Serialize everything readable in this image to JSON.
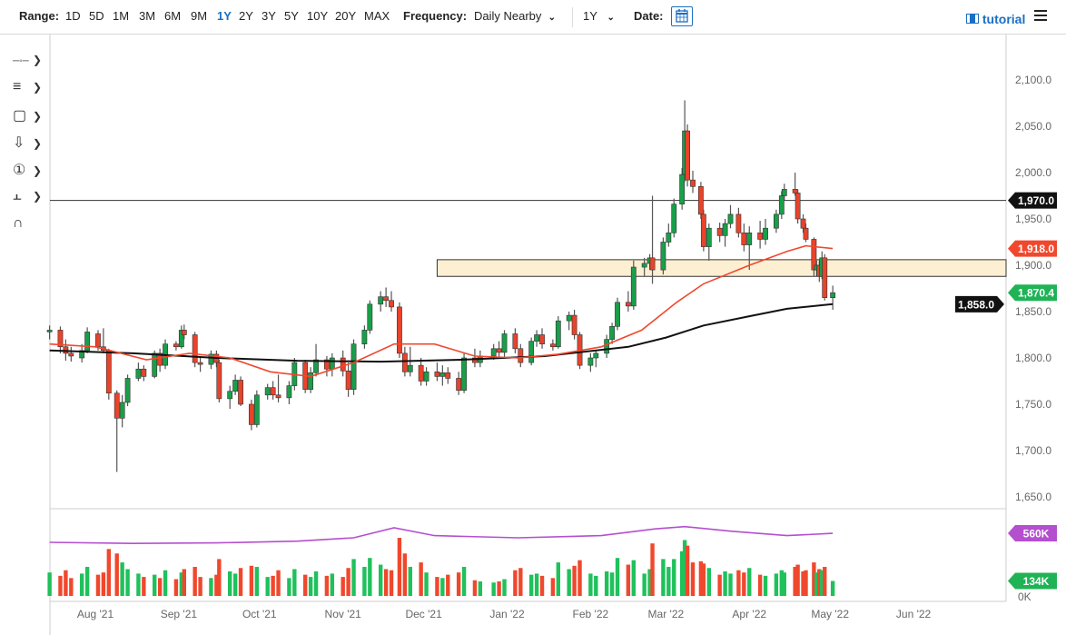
{
  "toolbar": {
    "range_label": "Range:",
    "ranges": [
      "1D",
      "5D",
      "1M",
      "3M",
      "6M",
      "9M",
      "1Y",
      "2Y",
      "3Y",
      "5Y",
      "10Y",
      "20Y",
      "MAX"
    ],
    "active_range": "1Y",
    "frequency_label": "Frequency:",
    "frequency_value": "Daily Nearby",
    "period_value": "1Y",
    "date_label": "Date:",
    "tutorial_label": "tutorial",
    "icons": [
      "calendar-icon",
      "film-icon",
      "hamburger-menu-icon"
    ]
  },
  "left_tools": [
    "crosshair-line-icon",
    "fibonacci-icon",
    "rectangle-icon",
    "arrow-down-icon",
    "numbered-marker-icon",
    "measure-icon",
    "magnet-icon"
  ],
  "colors": {
    "up": "#1a9e4a",
    "down": "#e8432b",
    "ma_short": "#f0482d",
    "ma_long": "#111111",
    "open_interest": "#b44fcf",
    "zone_fill": "#fdefd2",
    "volume_up": "#1fc15b",
    "volume_down": "#f0482d"
  },
  "chart_data": {
    "type": "candlestick",
    "price_axis": {
      "ylim": [
        1640,
        2115
      ],
      "ticks": [
        "2,100.0",
        "2,050.0",
        "2,000.0",
        "1,950.0",
        "1,900.0",
        "1,850.0",
        "1,800.0",
        "1,750.0",
        "1,700.0",
        "1,650.0"
      ],
      "tick_values": [
        2100,
        2050,
        2000,
        1950,
        1900,
        1850,
        1800,
        1750,
        1700,
        1650
      ]
    },
    "x_axis": {
      "ticks": [
        "Aug '21",
        "Sep '21",
        "Oct '21",
        "Nov '21",
        "Dec '21",
        "Jan '22",
        "Feb '22",
        "Mar '22",
        "Apr '22",
        "May '22",
        "Jun '22"
      ],
      "tick_dates": [
        "2021-08-01",
        "2021-09-01",
        "2021-10-01",
        "2021-11-01",
        "2021-12-01",
        "2022-01-01",
        "2022-02-01",
        "2022-03-01",
        "2022-04-01",
        "2022-05-01",
        "2022-06-01"
      ]
    },
    "price_labels": [
      {
        "text": "1,970.0",
        "value": 1970,
        "color": "#111111"
      },
      {
        "text": "1,918.0",
        "value": 1918,
        "color": "#f0482d"
      },
      {
        "text": "1,858.0",
        "value": 1858,
        "color": "#111111"
      },
      {
        "text": "1,870.4",
        "value": 1870.4,
        "color": "#1fb356"
      }
    ],
    "horizontal_line": 1970,
    "zone": {
      "from": 1888,
      "to": 1906,
      "start": "2021-12-06"
    },
    "volume_axis": {
      "ticks": [
        "0K"
      ],
      "labels": [
        {
          "text": "560K",
          "value": 560,
          "color": "#b44fcf"
        },
        {
          "text": "134K",
          "value": 134,
          "color": "#1fb356"
        }
      ]
    },
    "candles_columns": [
      "date",
      "open",
      "high",
      "low",
      "close",
      "volume_k"
    ],
    "candles": [
      [
        "2021-07-15",
        1828,
        1835,
        1820,
        1830,
        210
      ],
      [
        "2021-07-19",
        1830,
        1834,
        1805,
        1812,
        180
      ],
      [
        "2021-07-21",
        1812,
        1820,
        1797,
        1805,
        230
      ],
      [
        "2021-07-23",
        1805,
        1812,
        1796,
        1802,
        160
      ],
      [
        "2021-07-27",
        1800,
        1815,
        1795,
        1808,
        200
      ],
      [
        "2021-07-29",
        1808,
        1833,
        1805,
        1828,
        260
      ],
      [
        "2021-08-02",
        1826,
        1830,
        1808,
        1812,
        190
      ],
      [
        "2021-08-04",
        1812,
        1832,
        1805,
        1808,
        210
      ],
      [
        "2021-08-06",
        1808,
        1810,
        1755,
        1762,
        420
      ],
      [
        "2021-08-09",
        1762,
        1765,
        1677,
        1735,
        380
      ],
      [
        "2021-08-11",
        1735,
        1760,
        1725,
        1752,
        300
      ],
      [
        "2021-08-13",
        1752,
        1782,
        1748,
        1778,
        240
      ],
      [
        "2021-08-17",
        1778,
        1795,
        1775,
        1788,
        200
      ],
      [
        "2021-08-19",
        1788,
        1792,
        1775,
        1780,
        170
      ],
      [
        "2021-08-23",
        1780,
        1808,
        1778,
        1805,
        190
      ],
      [
        "2021-08-25",
        1805,
        1810,
        1785,
        1792,
        160
      ],
      [
        "2021-08-27",
        1792,
        1820,
        1788,
        1815,
        230
      ],
      [
        "2021-08-31",
        1815,
        1818,
        1808,
        1812,
        150
      ],
      [
        "2021-09-02",
        1812,
        1835,
        1810,
        1830,
        210
      ],
      [
        "2021-09-03",
        1830,
        1836,
        1820,
        1825,
        240
      ],
      [
        "2021-09-07",
        1825,
        1828,
        1790,
        1795,
        260
      ],
      [
        "2021-09-09",
        1795,
        1800,
        1785,
        1793,
        170
      ],
      [
        "2021-09-13",
        1793,
        1808,
        1788,
        1804,
        160
      ],
      [
        "2021-09-15",
        1804,
        1808,
        1790,
        1795,
        190
      ],
      [
        "2021-09-16",
        1795,
        1798,
        1752,
        1756,
        330
      ],
      [
        "2021-09-20",
        1756,
        1770,
        1745,
        1764,
        220
      ],
      [
        "2021-09-22",
        1764,
        1782,
        1760,
        1776,
        200
      ],
      [
        "2021-09-24",
        1776,
        1780,
        1748,
        1750,
        250
      ],
      [
        "2021-09-28",
        1750,
        1755,
        1722,
        1728,
        270
      ],
      [
        "2021-09-30",
        1728,
        1765,
        1725,
        1760,
        260
      ],
      [
        "2021-10-04",
        1760,
        1772,
        1755,
        1768,
        170
      ],
      [
        "2021-10-06",
        1768,
        1775,
        1755,
        1760,
        180
      ],
      [
        "2021-10-08",
        1760,
        1782,
        1752,
        1757,
        230
      ],
      [
        "2021-10-12",
        1757,
        1775,
        1750,
        1770,
        160
      ],
      [
        "2021-10-14",
        1770,
        1800,
        1765,
        1795,
        240
      ],
      [
        "2021-10-18",
        1795,
        1798,
        1762,
        1766,
        190
      ],
      [
        "2021-10-20",
        1766,
        1790,
        1762,
        1784,
        170
      ],
      [
        "2021-10-22",
        1784,
        1815,
        1780,
        1798,
        220
      ],
      [
        "2021-10-26",
        1798,
        1802,
        1780,
        1788,
        180
      ],
      [
        "2021-10-28",
        1788,
        1805,
        1780,
        1800,
        200
      ],
      [
        "2021-11-01",
        1800,
        1808,
        1780,
        1786,
        170
      ],
      [
        "2021-11-03",
        1786,
        1795,
        1758,
        1766,
        250
      ],
      [
        "2021-11-05",
        1766,
        1820,
        1760,
        1815,
        330
      ],
      [
        "2021-11-09",
        1815,
        1835,
        1810,
        1830,
        260
      ],
      [
        "2021-11-11",
        1830,
        1862,
        1826,
        1858,
        340
      ],
      [
        "2021-11-15",
        1858,
        1872,
        1850,
        1866,
        280
      ],
      [
        "2021-11-17",
        1866,
        1876,
        1855,
        1862,
        240
      ],
      [
        "2021-11-19",
        1862,
        1872,
        1850,
        1855,
        230
      ],
      [
        "2021-11-22",
        1855,
        1860,
        1800,
        1805,
        520
      ],
      [
        "2021-11-24",
        1805,
        1812,
        1780,
        1785,
        380
      ],
      [
        "2021-11-26",
        1785,
        1812,
        1780,
        1792,
        260
      ],
      [
        "2021-11-30",
        1792,
        1800,
        1770,
        1775,
        300
      ],
      [
        "2021-12-02",
        1775,
        1790,
        1770,
        1785,
        210
      ],
      [
        "2021-12-06",
        1785,
        1795,
        1775,
        1780,
        170
      ],
      [
        "2021-12-08",
        1780,
        1792,
        1770,
        1784,
        160
      ],
      [
        "2021-12-10",
        1784,
        1790,
        1772,
        1778,
        190
      ],
      [
        "2021-12-14",
        1778,
        1785,
        1760,
        1765,
        210
      ],
      [
        "2021-12-16",
        1765,
        1805,
        1762,
        1800,
        260
      ],
      [
        "2021-12-20",
        1800,
        1810,
        1790,
        1795,
        140
      ],
      [
        "2021-12-22",
        1795,
        1808,
        1790,
        1802,
        130
      ],
      [
        "2021-12-27",
        1802,
        1815,
        1798,
        1810,
        120
      ],
      [
        "2021-12-29",
        1810,
        1818,
        1800,
        1806,
        130
      ],
      [
        "2021-12-31",
        1806,
        1830,
        1800,
        1826,
        150
      ],
      [
        "2022-01-04",
        1826,
        1832,
        1805,
        1810,
        230
      ],
      [
        "2022-01-06",
        1810,
        1815,
        1790,
        1795,
        250
      ],
      [
        "2022-01-10",
        1795,
        1822,
        1792,
        1818,
        190
      ],
      [
        "2022-01-12",
        1818,
        1830,
        1812,
        1825,
        200
      ],
      [
        "2022-01-14",
        1825,
        1832,
        1810,
        1815,
        180
      ],
      [
        "2022-01-18",
        1815,
        1820,
        1808,
        1812,
        160
      ],
      [
        "2022-01-20",
        1812,
        1845,
        1810,
        1840,
        300
      ],
      [
        "2022-01-24",
        1840,
        1850,
        1830,
        1846,
        240
      ],
      [
        "2022-01-26",
        1846,
        1852,
        1820,
        1825,
        270
      ],
      [
        "2022-01-28",
        1825,
        1828,
        1788,
        1792,
        320
      ],
      [
        "2022-02-01",
        1792,
        1805,
        1785,
        1800,
        200
      ],
      [
        "2022-02-03",
        1800,
        1808,
        1790,
        1805,
        180
      ],
      [
        "2022-02-07",
        1805,
        1825,
        1800,
        1820,
        220
      ],
      [
        "2022-02-09",
        1820,
        1838,
        1815,
        1834,
        210
      ],
      [
        "2022-02-11",
        1834,
        1865,
        1830,
        1860,
        340
      ],
      [
        "2022-02-15",
        1860,
        1872,
        1850,
        1856,
        280
      ],
      [
        "2022-02-17",
        1856,
        1905,
        1852,
        1898,
        320
      ],
      [
        "2022-02-21",
        1898,
        1908,
        1888,
        1902,
        200
      ],
      [
        "2022-02-23",
        1902,
        1912,
        1895,
        1908,
        240
      ],
      [
        "2022-02-24",
        1908,
        1975,
        1880,
        1895,
        470
      ],
      [
        "2022-02-28",
        1895,
        1930,
        1890,
        1925,
        330
      ],
      [
        "2022-03-02",
        1925,
        1945,
        1920,
        1935,
        260
      ],
      [
        "2022-03-04",
        1935,
        1972,
        1930,
        1966,
        330
      ],
      [
        "2022-03-07",
        1966,
        2005,
        1960,
        1998,
        400
      ],
      [
        "2022-03-08",
        1998,
        2078,
        1990,
        2045,
        500
      ],
      [
        "2022-03-09",
        2045,
        2052,
        1985,
        1992,
        450
      ],
      [
        "2022-03-11",
        1992,
        2002,
        1978,
        1985,
        300
      ],
      [
        "2022-03-14",
        1985,
        1990,
        1950,
        1955,
        310
      ],
      [
        "2022-03-15",
        1955,
        1960,
        1915,
        1920,
        290
      ],
      [
        "2022-03-17",
        1920,
        1945,
        1905,
        1940,
        250
      ],
      [
        "2022-03-21",
        1940,
        1946,
        1925,
        1932,
        190
      ],
      [
        "2022-03-23",
        1932,
        1950,
        1920,
        1945,
        220
      ],
      [
        "2022-03-25",
        1945,
        1965,
        1940,
        1955,
        200
      ],
      [
        "2022-03-28",
        1955,
        1962,
        1930,
        1935,
        230
      ],
      [
        "2022-03-30",
        1935,
        1945,
        1915,
        1922,
        210
      ],
      [
        "2022-04-01",
        1922,
        1942,
        1895,
        1935,
        250
      ],
      [
        "2022-04-05",
        1935,
        1948,
        1918,
        1928,
        190
      ],
      [
        "2022-04-07",
        1928,
        1950,
        1922,
        1940,
        180
      ],
      [
        "2022-04-11",
        1940,
        1960,
        1935,
        1955,
        200
      ],
      [
        "2022-04-13",
        1955,
        1980,
        1950,
        1975,
        230
      ],
      [
        "2022-04-14",
        1975,
        1988,
        1970,
        1982,
        210
      ],
      [
        "2022-04-18",
        1982,
        2000,
        1975,
        1978,
        260
      ],
      [
        "2022-04-19",
        1978,
        1982,
        1945,
        1950,
        280
      ],
      [
        "2022-04-21",
        1950,
        1955,
        1935,
        1940,
        220
      ],
      [
        "2022-04-22",
        1940,
        1945,
        1925,
        1928,
        230
      ],
      [
        "2022-04-25",
        1928,
        1930,
        1888,
        1895,
        300
      ],
      [
        "2022-04-26",
        1895,
        1905,
        1888,
        1900,
        210
      ],
      [
        "2022-04-27",
        1900,
        1905,
        1882,
        1888,
        240
      ],
      [
        "2022-04-28",
        1888,
        1915,
        1885,
        1908,
        230
      ],
      [
        "2022-04-29",
        1908,
        1912,
        1862,
        1865,
        260
      ],
      [
        "2022-05-02",
        1865,
        1878,
        1852,
        1870.4,
        134
      ]
    ],
    "ma_short": [
      [
        "2021-07-15",
        1815
      ],
      [
        "2021-08-01",
        1812
      ],
      [
        "2021-08-20",
        1798
      ],
      [
        "2021-09-05",
        1805
      ],
      [
        "2021-09-20",
        1800
      ],
      [
        "2021-10-05",
        1785
      ],
      [
        "2021-10-20",
        1780
      ],
      [
        "2021-11-05",
        1795
      ],
      [
        "2021-11-20",
        1815
      ],
      [
        "2021-12-05",
        1815
      ],
      [
        "2021-12-20",
        1802
      ],
      [
        "2022-01-05",
        1800
      ],
      [
        "2022-01-20",
        1804
      ],
      [
        "2022-02-05",
        1812
      ],
      [
        "2022-02-20",
        1830
      ],
      [
        "2022-03-05",
        1860
      ],
      [
        "2022-03-15",
        1880
      ],
      [
        "2022-04-01",
        1900
      ],
      [
        "2022-04-15",
        1915
      ],
      [
        "2022-04-22",
        1921
      ],
      [
        "2022-05-02",
        1918
      ]
    ],
    "ma_long": [
      [
        "2021-07-15",
        1808
      ],
      [
        "2021-08-15",
        1805
      ],
      [
        "2021-09-15",
        1800
      ],
      [
        "2021-10-15",
        1797
      ],
      [
        "2021-11-15",
        1796
      ],
      [
        "2021-12-15",
        1798
      ],
      [
        "2022-01-15",
        1802
      ],
      [
        "2022-02-15",
        1812
      ],
      [
        "2022-03-01",
        1822
      ],
      [
        "2022-03-15",
        1835
      ],
      [
        "2022-04-01",
        1845
      ],
      [
        "2022-04-15",
        1853
      ],
      [
        "2022-05-02",
        1858
      ]
    ],
    "open_interest_k": [
      [
        "2021-07-15",
        480
      ],
      [
        "2021-08-15",
        470
      ],
      [
        "2021-09-15",
        475
      ],
      [
        "2021-10-15",
        490
      ],
      [
        "2021-11-05",
        520
      ],
      [
        "2021-11-20",
        610
      ],
      [
        "2021-12-05",
        540
      ],
      [
        "2022-01-05",
        520
      ],
      [
        "2022-02-05",
        540
      ],
      [
        "2022-02-25",
        600
      ],
      [
        "2022-03-08",
        620
      ],
      [
        "2022-03-25",
        580
      ],
      [
        "2022-04-15",
        540
      ],
      [
        "2022-05-02",
        560
      ]
    ]
  }
}
